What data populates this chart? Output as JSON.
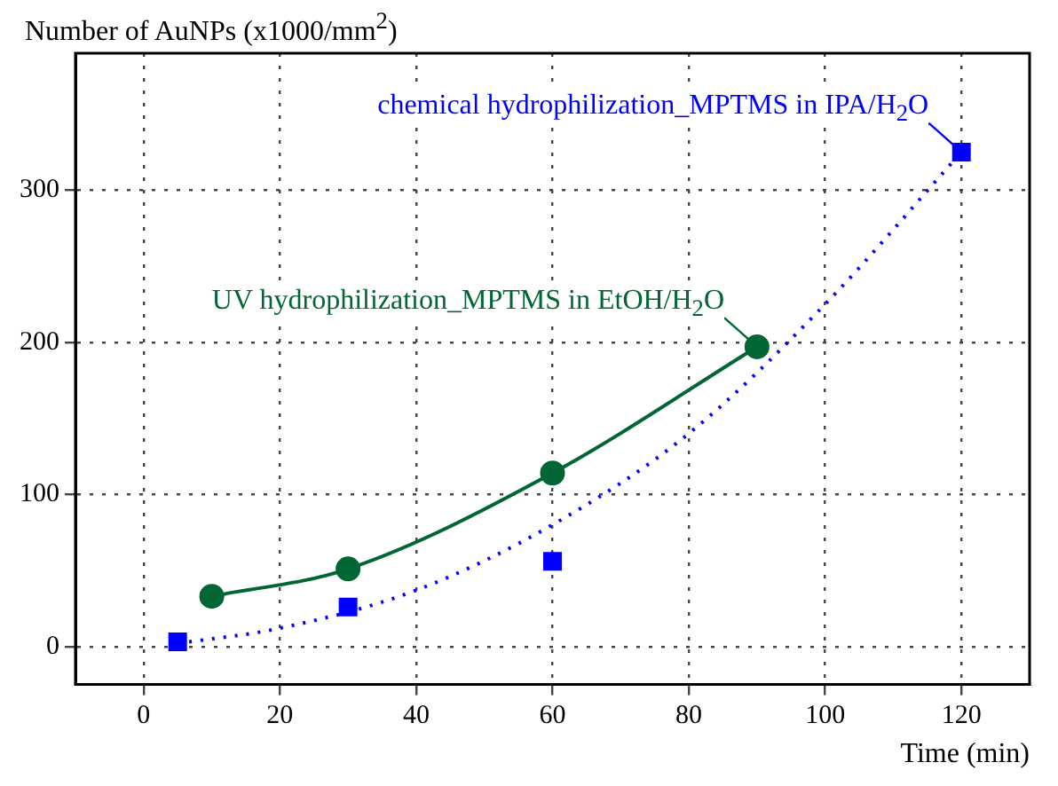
{
  "chart_data": {
    "type": "line",
    "ylabel": "Number of AuNPs (x1000/mm$^{2}$)",
    "xlabel": "Time (min)",
    "xlim": [
      -10,
      130
    ],
    "xticks": [
      0,
      20,
      40,
      60,
      80,
      100,
      120
    ],
    "ylim": [
      -25,
      390
    ],
    "yticks": [
      0,
      100,
      200,
      300
    ],
    "grid": true,
    "legend": false,
    "series": [
      {
        "name": "UV hydrophilization_MPTMS in EtOH/H$_{2}$O",
        "type": "line",
        "color": "#006633",
        "marker": "circle",
        "line_style": "solid",
        "x": [
          10,
          30,
          60,
          90
        ],
        "values": [
          33,
          51,
          114,
          197
        ]
      },
      {
        "name": "chemical hydrophilization_MPTMS in IPA/H$_{2}$O",
        "type": "scatter",
        "color": "#0000ff",
        "marker": "square",
        "x": [
          5,
          30,
          60,
          120
        ],
        "values": [
          3,
          26,
          56,
          325
        ]
      },
      {
        "type": "line",
        "color": "#0000ff",
        "marker": "none",
        "line_style": "dotted",
        "x": [
          5,
          20,
          40,
          60,
          80,
          100,
          120
        ],
        "values": [
          2,
          12,
          37,
          80,
          140,
          225,
          325
        ]
      }
    ]
  }
}
